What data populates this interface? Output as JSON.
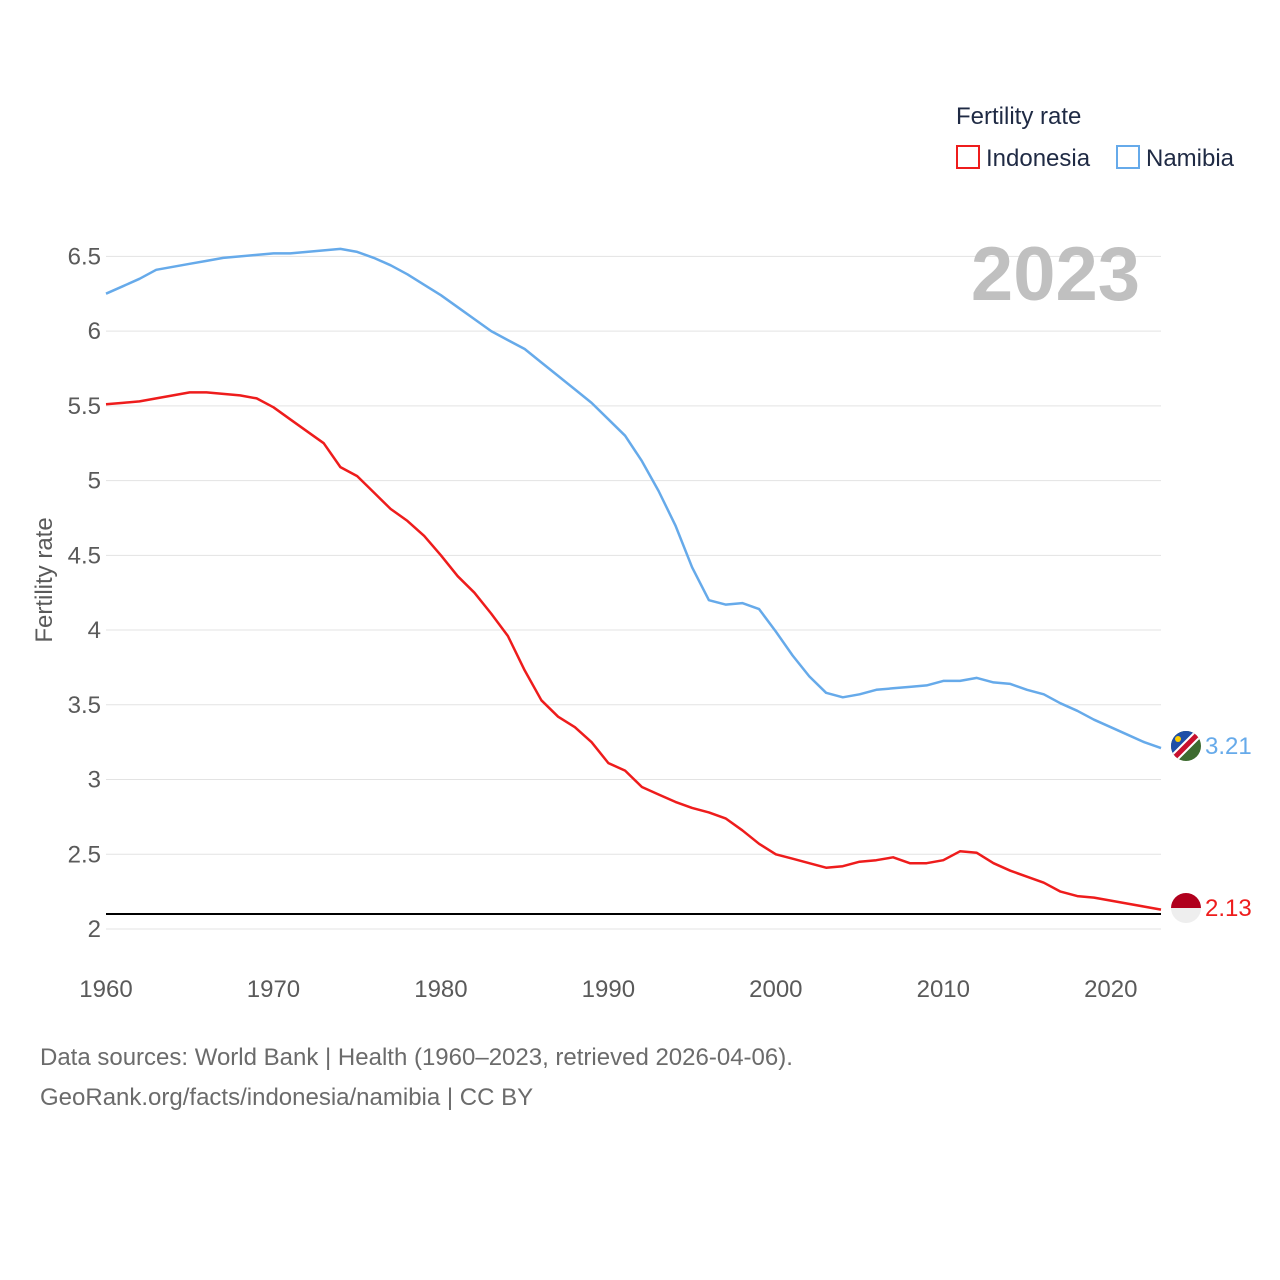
{
  "chart_data": {
    "type": "line",
    "ylabel": "Fertility rate",
    "xlabel": "",
    "ylim": [
      2,
      6.75
    ],
    "yticks": [
      2,
      2.5,
      3,
      3.5,
      4,
      4.5,
      5,
      5.5,
      6,
      6.5
    ],
    "ytick_labels": [
      "2",
      "2.5",
      "3",
      "3.5",
      "4",
      "4.5",
      "5",
      "5.5",
      "6",
      "6.5"
    ],
    "xlim": [
      1960,
      2023
    ],
    "xticks": [
      1960,
      1970,
      1980,
      1990,
      2000,
      2010,
      2020
    ],
    "xtick_labels": [
      "1960",
      "1970",
      "1980",
      "1990",
      "2000",
      "2010",
      "2020"
    ],
    "year_label": "2023",
    "reference_line": 2.1,
    "legend": {
      "title": "Fertility rate",
      "position": "top-right"
    },
    "x": [
      1960,
      1961,
      1962,
      1963,
      1964,
      1965,
      1966,
      1967,
      1968,
      1969,
      1970,
      1971,
      1972,
      1973,
      1974,
      1975,
      1976,
      1977,
      1978,
      1979,
      1980,
      1981,
      1982,
      1983,
      1984,
      1985,
      1986,
      1987,
      1988,
      1989,
      1990,
      1991,
      1992,
      1993,
      1994,
      1995,
      1996,
      1997,
      1998,
      1999,
      2000,
      2001,
      2002,
      2003,
      2004,
      2005,
      2006,
      2007,
      2008,
      2009,
      2010,
      2011,
      2012,
      2013,
      2014,
      2015,
      2016,
      2017,
      2018,
      2019,
      2020,
      2021,
      2022,
      2023
    ],
    "series": [
      {
        "name": "Indonesia",
        "color": "#ee1c1c",
        "end_label": "2.13",
        "flag": "indonesia-flag-icon",
        "values": [
          5.51,
          5.52,
          5.53,
          5.55,
          5.57,
          5.59,
          5.59,
          5.58,
          5.57,
          5.55,
          5.49,
          5.41,
          5.33,
          5.25,
          5.09,
          5.03,
          4.92,
          4.81,
          4.73,
          4.63,
          4.5,
          4.36,
          4.25,
          4.11,
          3.96,
          3.73,
          3.53,
          3.42,
          3.35,
          3.25,
          3.11,
          3.06,
          2.95,
          2.9,
          2.85,
          2.81,
          2.78,
          2.74,
          2.66,
          2.57,
          2.5,
          2.47,
          2.44,
          2.41,
          2.42,
          2.45,
          2.46,
          2.48,
          2.44,
          2.44,
          2.46,
          2.52,
          2.51,
          2.44,
          2.39,
          2.35,
          2.31,
          2.25,
          2.22,
          2.21,
          2.19,
          2.17,
          2.15,
          2.13
        ]
      },
      {
        "name": "Namibia",
        "color": "#66aaea",
        "end_label": "3.21",
        "flag": "namibia-flag-icon",
        "values": [
          6.25,
          6.3,
          6.35,
          6.41,
          6.43,
          6.45,
          6.47,
          6.49,
          6.5,
          6.51,
          6.52,
          6.52,
          6.53,
          6.54,
          6.55,
          6.53,
          6.49,
          6.44,
          6.38,
          6.31,
          6.24,
          6.16,
          6.08,
          6.0,
          5.94,
          5.88,
          5.79,
          5.7,
          5.61,
          5.52,
          5.41,
          5.3,
          5.13,
          4.93,
          4.7,
          4.42,
          4.2,
          4.17,
          4.18,
          4.14,
          3.99,
          3.83,
          3.69,
          3.58,
          3.55,
          3.57,
          3.6,
          3.61,
          3.62,
          3.63,
          3.66,
          3.66,
          3.68,
          3.65,
          3.64,
          3.6,
          3.57,
          3.51,
          3.46,
          3.4,
          3.35,
          3.3,
          3.25,
          3.21
        ]
      }
    ]
  },
  "footer": {
    "source": "Data sources: World Bank | Health (1960–2023, retrieved 2026-04-06).",
    "url": "GeoRank.org/facts/indonesia/namibia | CC BY"
  }
}
